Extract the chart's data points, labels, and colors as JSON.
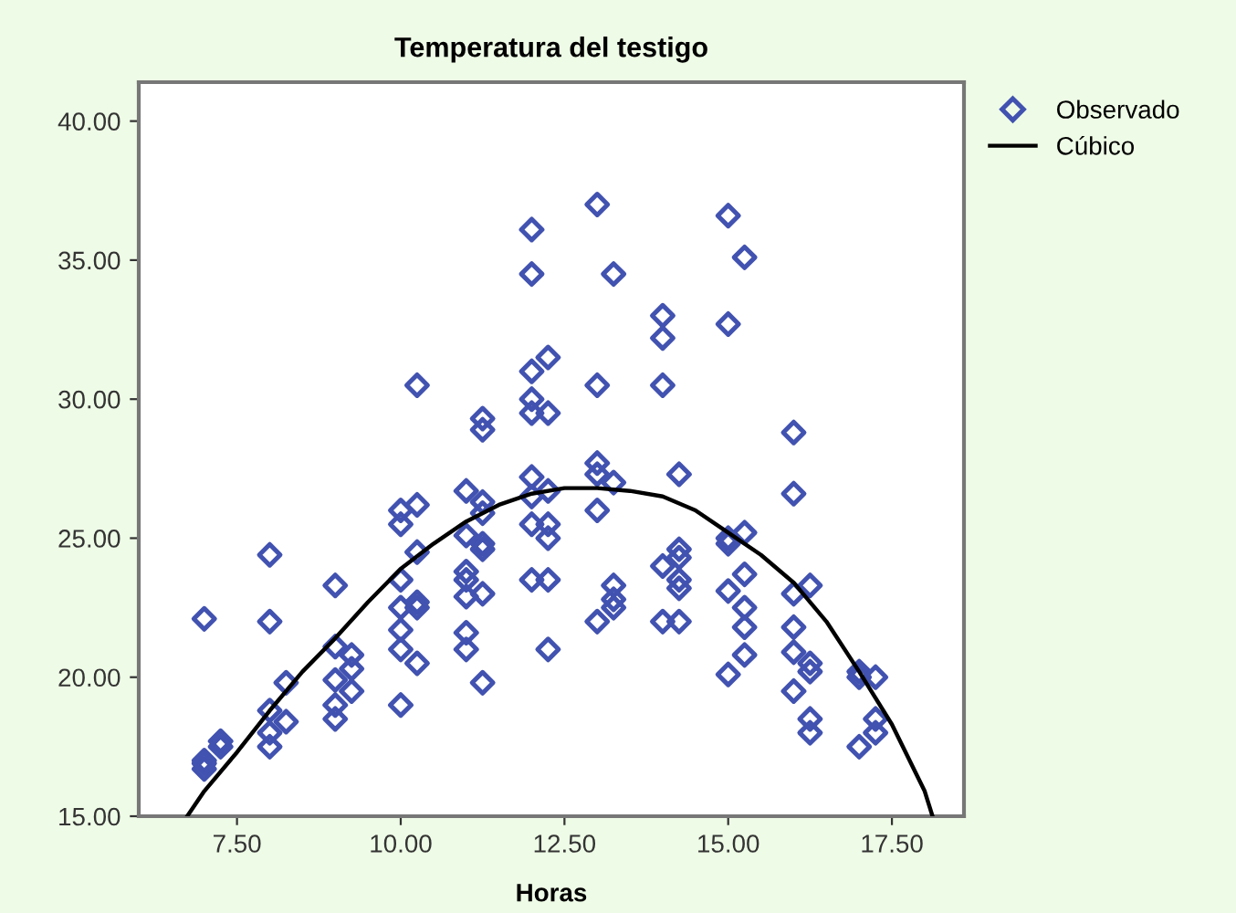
{
  "chart_data": {
    "type": "scatter",
    "title": "Temperatura del testigo",
    "xlabel": "Horas",
    "xlim": [
      6.0,
      18.6
    ],
    "xticks": [
      {
        "value": 7.5,
        "label": "7.50"
      },
      {
        "value": 10,
        "label": "10.00"
      },
      {
        "value": 12.5,
        "label": "12.50"
      },
      {
        "value": 15,
        "label": "15.00"
      },
      {
        "value": 17.5,
        "label": "17.50"
      }
    ],
    "ylim": [
      15,
      41.4
    ],
    "yticks": [
      {
        "value": 15,
        "label": "15.00"
      },
      {
        "value": 20,
        "label": "20.00"
      },
      {
        "value": 25,
        "label": "25.00"
      },
      {
        "value": 30,
        "label": "30.00"
      },
      {
        "value": 35,
        "label": "35.00"
      },
      {
        "value": 40,
        "label": "40.00"
      }
    ],
    "grid": false,
    "legend": "top right",
    "series": [
      {
        "name": "Observado",
        "marker": "diamond",
        "color": "#4152b0",
        "x": [
          7,
          7,
          7,
          7,
          7.25,
          7.25,
          8,
          8,
          8,
          8,
          8,
          8.25,
          8.25,
          9,
          9,
          9,
          9,
          9,
          9.25,
          9.25,
          9.25,
          10,
          10,
          10,
          10,
          10,
          10,
          10,
          10.25,
          10.25,
          10.25,
          10.25,
          10.25,
          10.25,
          11,
          11,
          11,
          11,
          11,
          11,
          11,
          11.25,
          11.25,
          11.25,
          11.25,
          11.25,
          11.25,
          11.25,
          11.25,
          12,
          12,
          12,
          12,
          12,
          12,
          12,
          12,
          12,
          12.25,
          12.25,
          12.25,
          12.25,
          12.25,
          12.25,
          12.25,
          13,
          13,
          13,
          13,
          13,
          13,
          13.25,
          13.25,
          13.25,
          13.25,
          13.25,
          14,
          14,
          14,
          14,
          14,
          14.25,
          14.25,
          14.25,
          14.25,
          14.25,
          14.25,
          15,
          15,
          15,
          15,
          15,
          15,
          15.25,
          15.25,
          15.25,
          15.25,
          15.25,
          15.25,
          16,
          16,
          16,
          16,
          16,
          16,
          16.25,
          16.25,
          16.25,
          16.25,
          16.25,
          17,
          17,
          17,
          17.25,
          17.25,
          17.25
        ],
        "values": [
          22.1,
          17.0,
          16.7,
          16.9,
          17.7,
          17.5,
          24.4,
          22.0,
          18.8,
          18.0,
          17.5,
          19.8,
          18.4,
          23.3,
          21.1,
          19.9,
          19.0,
          18.5,
          20.8,
          20.3,
          19.5,
          26.0,
          25.5,
          23.5,
          22.5,
          21.7,
          21.0,
          19.0,
          30.5,
          26.2,
          24.5,
          22.7,
          22.5,
          20.5,
          26.7,
          25.1,
          23.8,
          23.5,
          22.9,
          21.6,
          21.0,
          29.3,
          28.9,
          26.3,
          25.9,
          24.8,
          24.6,
          23.0,
          19.8,
          36.1,
          34.5,
          31.0,
          30.0,
          29.5,
          27.2,
          26.5,
          25.5,
          23.5,
          31.5,
          29.5,
          26.7,
          25.5,
          25.0,
          23.5,
          21.0,
          37.0,
          30.5,
          27.7,
          27.3,
          26.0,
          22.0,
          34.5,
          27.0,
          23.3,
          22.8,
          22.5,
          33.0,
          32.2,
          30.5,
          24.0,
          22.0,
          27.3,
          24.6,
          24.3,
          23.5,
          23.2,
          22.0,
          36.6,
          32.7,
          25.0,
          24.8,
          23.1,
          20.1,
          35.1,
          25.2,
          23.7,
          22.5,
          21.8,
          20.8,
          28.8,
          26.6,
          23.0,
          21.8,
          20.9,
          19.5,
          23.3,
          20.5,
          20.2,
          18.5,
          18.0,
          20.2,
          20.0,
          17.5,
          20.0,
          18.5,
          18.0
        ]
      },
      {
        "name": "Cúbico",
        "type": "line",
        "marker": "none",
        "line_style": "solid",
        "color": "#000000",
        "x": [
          6.74,
          7,
          7.5,
          8,
          8.5,
          9,
          9.5,
          10,
          10.5,
          11,
          11.5,
          12,
          12.5,
          13,
          13.5,
          14,
          14.5,
          15,
          15.5,
          16,
          16.5,
          17,
          17.5,
          18,
          18.12
        ],
        "values": [
          15,
          15.9,
          17.3,
          18.8,
          20.2,
          21.4,
          22.7,
          23.9,
          24.8,
          25.6,
          26.2,
          26.6,
          26.8,
          26.8,
          26.7,
          26.5,
          26.0,
          25.2,
          24.4,
          23.4,
          22.0,
          20.2,
          18.3,
          15.9,
          15
        ]
      }
    ]
  }
}
